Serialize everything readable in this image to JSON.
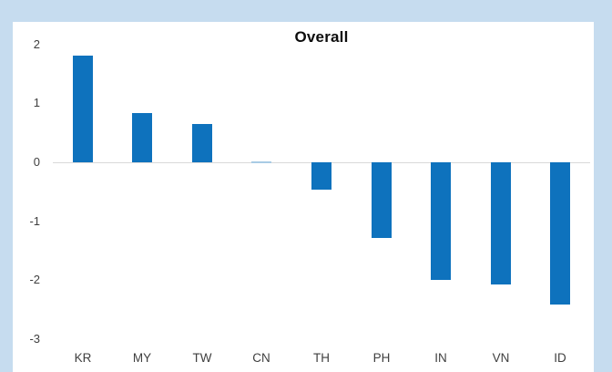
{
  "chart_data": {
    "type": "bar",
    "title": "Overall",
    "categories": [
      "KR",
      "MY",
      "TW",
      "CN",
      "TH",
      "PH",
      "IN",
      "VN",
      "ID"
    ],
    "values": [
      1.81,
      0.83,
      0.65,
      0.02,
      -0.46,
      -1.29,
      -2.0,
      -2.08,
      -2.42
    ],
    "xlabel": "",
    "ylabel": "",
    "ylim": [
      -3,
      2
    ],
    "yticks": [
      2,
      1,
      0,
      -1,
      -2,
      -3
    ],
    "grid": false,
    "legend": null
  },
  "colors": {
    "page_background": "#C6DCEF",
    "card_background": "#FFFFFF",
    "bar": "#0E72BD",
    "bar_tiny": "#A9CBE5",
    "axis_line": "#D9D9D9",
    "tick_text": "#3F3F3F",
    "title_text": "#0D0D0D"
  }
}
